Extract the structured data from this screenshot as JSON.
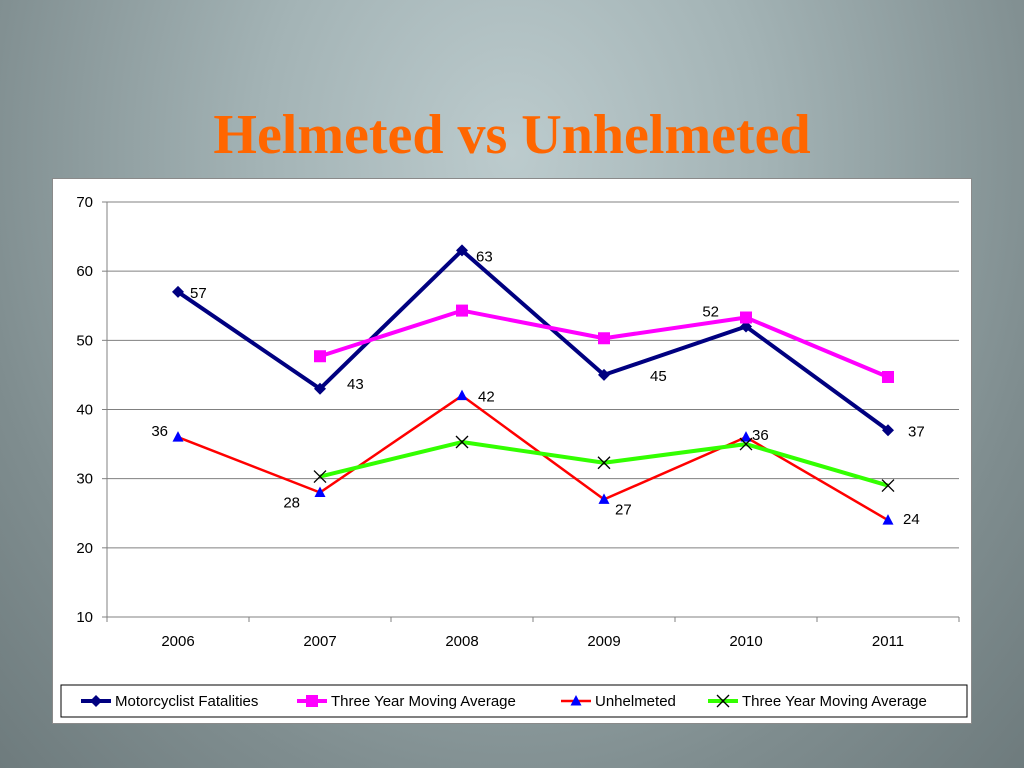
{
  "slide": {
    "title": "Helmeted vs Unhelmeted"
  },
  "chart_data": {
    "type": "line",
    "title": "",
    "xlabel": "",
    "ylabel": "",
    "categories": [
      "2006",
      "2007",
      "2008",
      "2009",
      "2010",
      "2011"
    ],
    "ylim": [
      10,
      70
    ],
    "yticks": [
      10,
      20,
      30,
      40,
      50,
      60,
      70
    ],
    "grid": true,
    "legend_position": "bottom",
    "series": [
      {
        "name": "Motorcyclist Fatalities",
        "values": [
          57,
          43,
          63,
          45,
          52,
          37
        ],
        "labels": [
          "57",
          "43",
          "63",
          "45",
          "52",
          "37"
        ],
        "color": "#000080",
        "marker": "diamond"
      },
      {
        "name": "Three Year  Moving Average",
        "values": [
          null,
          47.7,
          54.3,
          50.3,
          53.3,
          44.7
        ],
        "labels": [],
        "color": "#ff00ff",
        "marker": "square"
      },
      {
        "name": "Unhelmeted",
        "values": [
          36,
          28,
          42,
          27,
          36,
          24
        ],
        "labels": [
          "36",
          "28",
          "42",
          "27",
          "36",
          "24"
        ],
        "color": "#ff0000",
        "marker": "triangle",
        "marker_color": "#0000ff"
      },
      {
        "name": "Three Year  Moving Average",
        "values": [
          null,
          30.3,
          35.3,
          32.3,
          35.0,
          29.0
        ],
        "labels": [],
        "color": "#33ff00",
        "marker": "x",
        "marker_color": "#000000"
      }
    ]
  }
}
